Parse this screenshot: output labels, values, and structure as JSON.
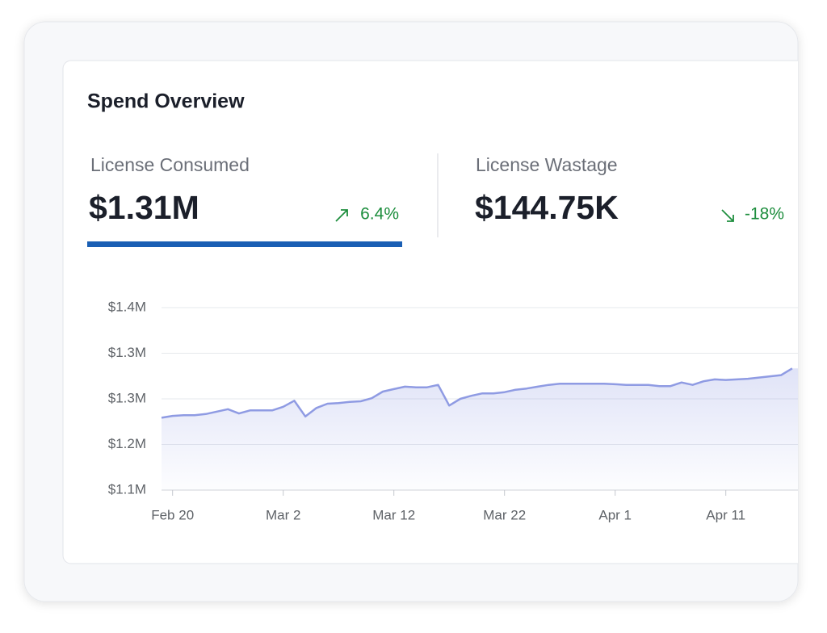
{
  "card": {
    "title": "Spend Overview",
    "metrics": [
      {
        "label": "License Consumed",
        "value": "$1.31M",
        "change": "6.4%"
      },
      {
        "label": "License Wastage",
        "value": "$144.75K",
        "change": "-18%"
      }
    ]
  },
  "chart_data": {
    "type": "area",
    "categories": [
      null,
      "Feb 20",
      null,
      null,
      null,
      null,
      null,
      null,
      null,
      null,
      null,
      "Mar 2",
      null,
      null,
      null,
      null,
      null,
      null,
      null,
      null,
      null,
      "Mar 12",
      null,
      null,
      null,
      null,
      null,
      null,
      null,
      null,
      null,
      "Mar 22",
      null,
      null,
      null,
      null,
      null,
      null,
      null,
      null,
      null,
      "Apr 1",
      null,
      null,
      null,
      null,
      null,
      null,
      null,
      null,
      null,
      "Apr 11",
      null,
      null,
      null,
      null,
      null,
      null
    ],
    "values": [
      1219000,
      1222000,
      1223000,
      1223000,
      1225000,
      1229000,
      1233000,
      1226000,
      1231000,
      1231000,
      1231000,
      1237000,
      1247000,
      1221000,
      1235000,
      1242000,
      1243000,
      1245000,
      1246000,
      1251000,
      1262000,
      1266000,
      1270000,
      1269000,
      1269000,
      1273000,
      1239000,
      1250000,
      1255000,
      1259000,
      1259000,
      1261000,
      1265000,
      1267000,
      1270000,
      1273000,
      1275000,
      1275000,
      1275000,
      1275000,
      1275000,
      1274000,
      1273000,
      1273000,
      1273000,
      1271000,
      1271000,
      1277000,
      1273000,
      1279000,
      1282000,
      1281000,
      1282000,
      1283000,
      1285000,
      1287000,
      1289000,
      1300000
    ],
    "color": "#8f9be3",
    "ylim": [
      1100000,
      1400000
    ],
    "yticks": [
      {
        "value": 1100000,
        "label": "$1.1M"
      },
      {
        "value": 1175000,
        "label": "$1.2M"
      },
      {
        "value": 1250000,
        "label": "$1.3M"
      },
      {
        "value": 1325000,
        "label": "$1.3M"
      },
      {
        "value": 1400000,
        "label": "$1.4M"
      }
    ],
    "grid": true
  }
}
